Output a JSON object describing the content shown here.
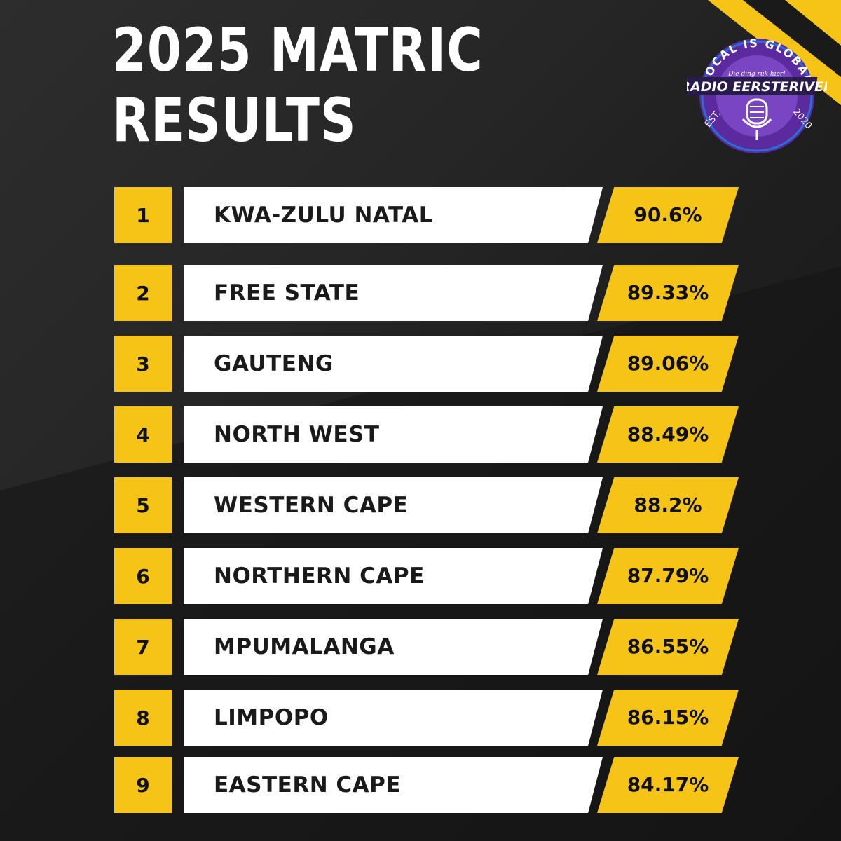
{
  "title": {
    "line1": "2025 MATRIC",
    "line2": "RESULTS"
  },
  "colors": {
    "accent": "#f5c417",
    "background": "#1f1f1f",
    "row_bg": "#ffffff",
    "logo_purple": "#5b2a9e"
  },
  "logo": {
    "top_text": "LOCAL IS GLOBAL",
    "tagline": "Die ding ruk hier!",
    "name": "RADIO EERSTERIVER",
    "est": "EST.",
    "year": "2020"
  },
  "rows": [
    {
      "rank": "1",
      "province": "KWA-ZULU NATAL",
      "pct": "90.6%"
    },
    {
      "rank": "2",
      "province": "FREE STATE",
      "pct": "89.33%"
    },
    {
      "rank": "3",
      "province": "GAUTENG",
      "pct": "89.06%"
    },
    {
      "rank": "4",
      "province": "NORTH WEST",
      "pct": "88.49%"
    },
    {
      "rank": "5",
      "province": "WESTERN CAPE",
      "pct": "88.2%"
    },
    {
      "rank": "6",
      "province": "NORTHERN CAPE",
      "pct": "87.79%"
    },
    {
      "rank": "7",
      "province": "MPUMALANGA",
      "pct": "86.55%"
    },
    {
      "rank": "8",
      "province": "LIMPOPO",
      "pct": "86.15%"
    },
    {
      "rank": "9",
      "province": "EASTERN CAPE",
      "pct": "84.17%"
    }
  ]
}
